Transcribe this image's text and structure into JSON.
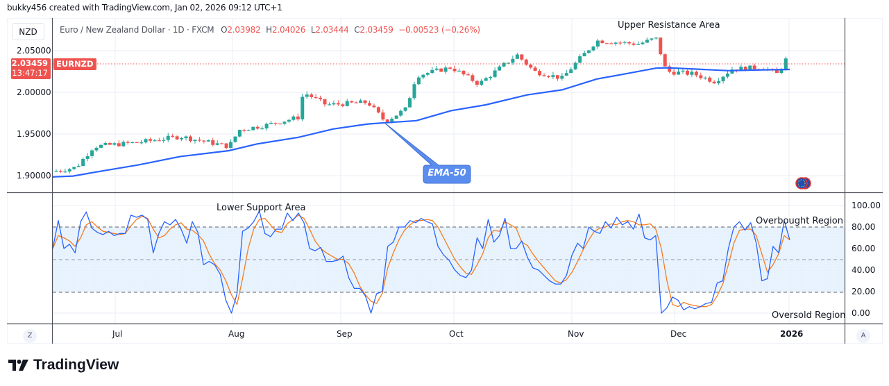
{
  "header": {
    "credit": "bukky456 created with TradingView.com, Jan 02, 2026 09:12 UTC+1"
  },
  "legend": {
    "currency_button": "NZD",
    "symbol_desc": "Euro / New Zealand Dollar · 1D · FXCM",
    "o_label": "O",
    "o_value": "2.03982",
    "h_label": "H",
    "h_value": "2.04026",
    "l_label": "L",
    "l_value": "2.03444",
    "c_label": "C",
    "c_value": "2.03459",
    "change": "−0.00523 (−0.26%)"
  },
  "price_badge": {
    "price": "2.03459",
    "countdown": "13:47:17",
    "symbol": "EURNZD"
  },
  "price_axis": {
    "ticks": [
      "2.05000",
      "2.00000",
      "1.95000",
      "1.90000"
    ]
  },
  "osc_axis": {
    "ticks": [
      "100.00",
      "80.00",
      "60.00",
      "40.00",
      "20.00",
      "0.00"
    ]
  },
  "time_axis": {
    "labels": [
      "Jul",
      "Aug",
      "Sep",
      "Oct",
      "Nov",
      "Dec",
      "2026"
    ],
    "left_button": "Z",
    "right_button": "A"
  },
  "annotations": {
    "upper_resistance": "Upper Resistance Area",
    "ema_callout": "EMA-50",
    "lower_support": "Lower Support Area",
    "overbought": "Overbought Region",
    "oversold": "Oversold Region"
  },
  "colors": {
    "up": "#26a69a",
    "down": "#ef5350",
    "ema": "#2962ff",
    "k_line": "#2962ff",
    "d_line": "#f57c20",
    "band": "#e3f2fd",
    "callout": "#5b8def"
  },
  "brand": {
    "logo_text": "TradingView"
  },
  "chart_data": [
    {
      "type": "candlestick",
      "title": "Euro / New Zealand Dollar · 1D · FXCM",
      "symbol": "EURNZD",
      "ylabel": "NZD",
      "ylim": [
        1.885,
        2.085
      ],
      "x_labels": [
        "Jul",
        "Aug",
        "Sep",
        "Oct",
        "Nov",
        "Dec",
        "2026"
      ],
      "last": {
        "open": 2.03982,
        "high": 2.04026,
        "low": 2.03444,
        "close": 2.03459,
        "change": -0.00523,
        "change_pct": -0.26
      },
      "approx_closes_by_month": {
        "late_Jun": 1.905,
        "Jul": 1.935,
        "Aug": 1.975,
        "mid_Aug": 2.0,
        "Sep": 1.985,
        "mid_Sep": 1.965,
        "Oct": 2.03,
        "mid_Oct": 2.045,
        "late_Oct": 2.018,
        "Nov": 2.06,
        "late_Nov": 2.065,
        "Dec": 2.025,
        "mid_Dec": 2.015,
        "late_Dec": 2.03,
        "Jan": 2.0346
      },
      "ema50": {
        "label": "EMA-50",
        "start": 1.898,
        "Aug": 1.93,
        "Sep": 1.963,
        "Oct": 1.985,
        "Nov": 2.01,
        "Dec": 2.028,
        "end": 2.027
      },
      "annotations": [
        "Upper Resistance Area",
        "EMA-50"
      ]
    },
    {
      "type": "line",
      "title": "Stochastic Oscillator",
      "ylim": [
        0,
        100
      ],
      "yticks": [
        0,
        20,
        40,
        60,
        80,
        100
      ],
      "bands": {
        "overbought": 80,
        "mid": 50,
        "oversold": 20
      },
      "series": [
        {
          "name": "%K",
          "color": "#2962ff",
          "values": [
            60,
            86,
            60,
            64,
            56,
            85,
            94,
            79,
            75,
            73,
            76,
            72,
            74,
            74,
            91,
            89,
            91,
            87,
            56,
            74,
            85,
            82,
            87,
            78,
            65,
            85,
            75,
            45,
            48,
            45,
            36,
            12,
            0,
            18,
            76,
            79,
            85,
            95,
            74,
            71,
            78,
            78,
            93,
            86,
            93,
            84,
            60,
            58,
            61,
            48,
            48,
            49,
            53,
            33,
            23,
            23,
            16,
            0,
            18,
            20,
            62,
            66,
            80,
            80,
            86,
            84,
            88,
            85,
            83,
            62,
            54,
            49,
            40,
            35,
            33,
            40,
            70,
            60,
            87,
            66,
            72,
            88,
            60,
            60,
            67,
            52,
            42,
            40,
            35,
            30,
            27,
            27,
            35,
            54,
            65,
            60,
            80,
            76,
            74,
            85,
            79,
            89,
            82,
            85,
            78,
            92,
            70,
            68,
            72,
            0,
            5,
            15,
            12,
            3,
            6,
            4,
            6,
            9,
            10,
            28,
            30,
            60,
            80,
            85,
            77,
            84,
            65,
            30,
            32,
            62,
            56,
            86,
            68
          ]
        },
        {
          "name": "%D",
          "color": "#f57c20",
          "values": [
            60,
            72,
            70,
            67,
            62,
            70,
            82,
            85,
            80,
            76,
            75,
            74,
            73,
            74,
            81,
            87,
            90,
            88,
            78,
            70,
            72,
            78,
            82,
            84,
            78,
            77,
            73,
            67,
            55,
            46,
            40,
            30,
            17,
            8,
            32,
            60,
            78,
            87,
            88,
            82,
            76,
            75,
            83,
            87,
            91,
            88,
            78,
            67,
            60,
            56,
            53,
            50,
            50,
            46,
            37,
            25,
            17,
            11,
            9,
            18,
            42,
            56,
            68,
            77,
            82,
            86,
            86,
            87,
            86,
            80,
            70,
            60,
            50,
            43,
            37,
            36,
            45,
            55,
            70,
            77,
            76,
            85,
            82,
            79,
            66,
            63,
            55,
            48,
            42,
            36,
            30,
            28,
            31,
            38,
            48,
            59,
            68,
            76,
            79,
            80,
            83,
            82,
            85,
            86,
            85,
            82,
            82,
            83,
            78,
            60,
            30,
            8,
            6,
            10,
            8,
            7,
            6,
            6,
            8,
            16,
            27,
            45,
            65,
            77,
            78,
            78,
            72,
            55,
            38,
            45,
            55,
            72,
            68
          ]
        }
      ],
      "annotations": [
        "Lower Support Area",
        "Overbought Region",
        "Oversold Region"
      ]
    }
  ]
}
